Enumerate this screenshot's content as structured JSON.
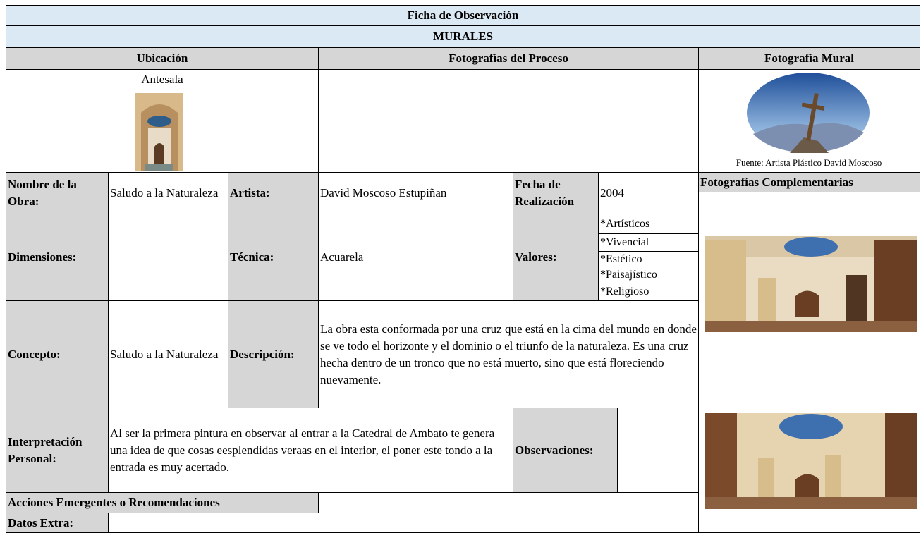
{
  "header": {
    "title": "Ficha de Observación",
    "subtitle": "MURALES"
  },
  "columns": [
    "Ubicación",
    "Fotografías del Proceso",
    "Fotografía Mural"
  ],
  "location": "Antesala",
  "mural_photo_caption": "Fuente: Artista Plástico David Moscoso",
  "complementary_title": "Fotografías Complementarias",
  "fields": {
    "name": {
      "label": "Nombre de la Obra:",
      "value": "Saludo a la Naturaleza"
    },
    "artist": {
      "label": "Artista:",
      "value": "David Moscoso Estupiñan"
    },
    "date": {
      "label": "Fecha de Realización",
      "value": "2004"
    },
    "dimensions": {
      "label": "Dimensiones:"
    },
    "technique": {
      "label": "Técnica:",
      "value": "Acuarela"
    },
    "values": {
      "label": "Valores:",
      "items": [
        "*Artísticos",
        "*Vivencial",
        "*Estético",
        "*Paisajístico",
        "*Religioso"
      ]
    },
    "concept": {
      "label": "Concepto:",
      "value": "Saludo a la Naturaleza"
    },
    "description": {
      "label": "Descripción:",
      "value": "La obra esta conformada por una cruz que está en la cima del mundo en donde se ve todo el horizonte y el dominio o el triunfo de la naturaleza. Es una cruz hecha dentro de un tronco que no está muerto, sino que está floreciendo nuevamente."
    },
    "interpretation": {
      "label": "Interpretación Personal:",
      "value": "Al ser la primera pintura en observar al entrar a la Catedral de Ambato te genera una idea de que cosas eesplendidas veraas en el interior, el poner este tondo a la entrada es muy acertado."
    },
    "observations": {
      "label": "Observaciones:"
    },
    "actions": {
      "label": "Acciones Emergentes o Recomendaciones"
    },
    "extra": {
      "label": "Datos Extra:"
    }
  }
}
